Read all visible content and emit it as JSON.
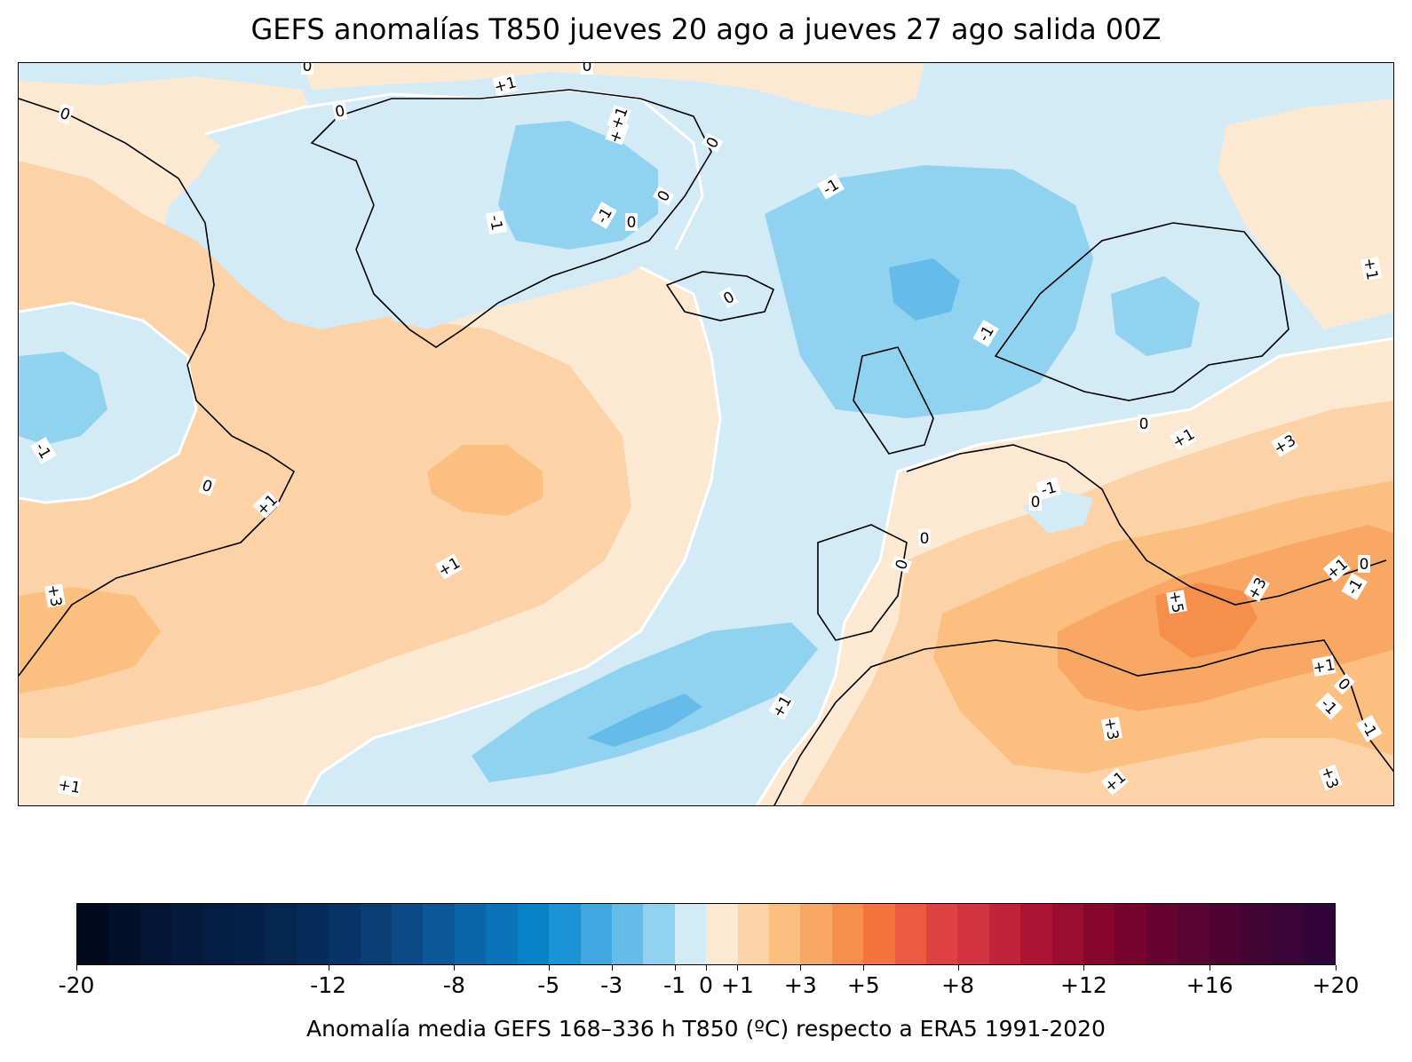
{
  "title": "GEFS anomalías T850 jueves 20 ago a jueves 27 ago salida 00Z",
  "colorbar": {
    "caption": "Anomalía media GEFS 168–336 h T850 (ºC) respecto a ERA5 1991-2020",
    "range": [
      -20,
      20
    ],
    "step": 1,
    "colors": [
      "#000a1e",
      "#01112a",
      "#021532",
      "#031a3a",
      "#041d42",
      "#05214a",
      "#062652",
      "#072c5c",
      "#083366",
      "#0a3d74",
      "#0b4a87",
      "#0c5797",
      "#0a65a8",
      "#0873b8",
      "#0782c8",
      "#1b93d6",
      "#3fa8e1",
      "#66bce9",
      "#92d2f1",
      "#d2ebf7",
      "#fde9d2",
      "#fcd2a6",
      "#fbbf80",
      "#f9a764",
      "#f78f4c",
      "#f4733f",
      "#ec5a3f",
      "#df4341",
      "#d13340",
      "#c1233a",
      "#ad1434",
      "#9a0c30",
      "#87062e",
      "#76042f",
      "#670330",
      "#5b0332",
      "#4e0334",
      "#430436",
      "#3a0437",
      "#300438"
    ],
    "tick_labels": [
      {
        "value": -20,
        "label": "-20"
      },
      {
        "value": -12,
        "label": "-12"
      },
      {
        "value": -8,
        "label": "-8"
      },
      {
        "value": -5,
        "label": "-5"
      },
      {
        "value": -3,
        "label": "-3"
      },
      {
        "value": -1,
        "label": "-1"
      },
      {
        "value": 0,
        "label": "0"
      },
      {
        "value": 1,
        "label": "+1"
      },
      {
        "value": 3,
        "label": "+3"
      },
      {
        "value": 5,
        "label": "+5"
      },
      {
        "value": 8,
        "label": "+8"
      },
      {
        "value": 12,
        "label": "+12"
      },
      {
        "value": 16,
        "label": "+16"
      },
      {
        "value": 20,
        "label": "+20"
      }
    ]
  },
  "map": {
    "fill_colors": {
      "neg1": "#d2ebf7",
      "neg3": "#92d2f1",
      "neg5": "#66bce9",
      "pos1": "#fde9d2",
      "pos3": "#fcd2a6",
      "pos5": "#fbbf80",
      "pos7": "#f9a764",
      "pos9": "#f78f4c"
    },
    "contour_labels": [
      {
        "text": "0"
      },
      {
        "text": "0"
      },
      {
        "text": "+1"
      },
      {
        "text": "0"
      },
      {
        "text": "0"
      },
      {
        "text": "+1"
      },
      {
        "text": "0"
      },
      {
        "text": "-1"
      },
      {
        "text": "-1"
      },
      {
        "text": "0"
      },
      {
        "text": "0"
      },
      {
        "text": "-1"
      },
      {
        "text": "0"
      },
      {
        "text": "-1"
      },
      {
        "text": "-1"
      },
      {
        "text": "0"
      },
      {
        "text": "+1"
      },
      {
        "text": "+1"
      },
      {
        "text": "0"
      },
      {
        "text": "+1"
      },
      {
        "text": "+3"
      },
      {
        "text": "0"
      },
      {
        "text": "-1"
      },
      {
        "text": "0"
      },
      {
        "text": "0"
      },
      {
        "text": "+5"
      },
      {
        "text": "+3"
      },
      {
        "text": "+1"
      },
      {
        "text": "0"
      },
      {
        "text": "-1"
      },
      {
        "text": "+3"
      },
      {
        "text": "+1"
      },
      {
        "text": "0"
      },
      {
        "text": "-1"
      },
      {
        "text": "-1"
      },
      {
        "text": "+3"
      },
      {
        "text": "+1"
      },
      {
        "text": "+1"
      },
      {
        "text": "+3"
      },
      {
        "text": "+1"
      },
      {
        "text": "+1"
      },
      {
        "text": "+1"
      }
    ]
  }
}
